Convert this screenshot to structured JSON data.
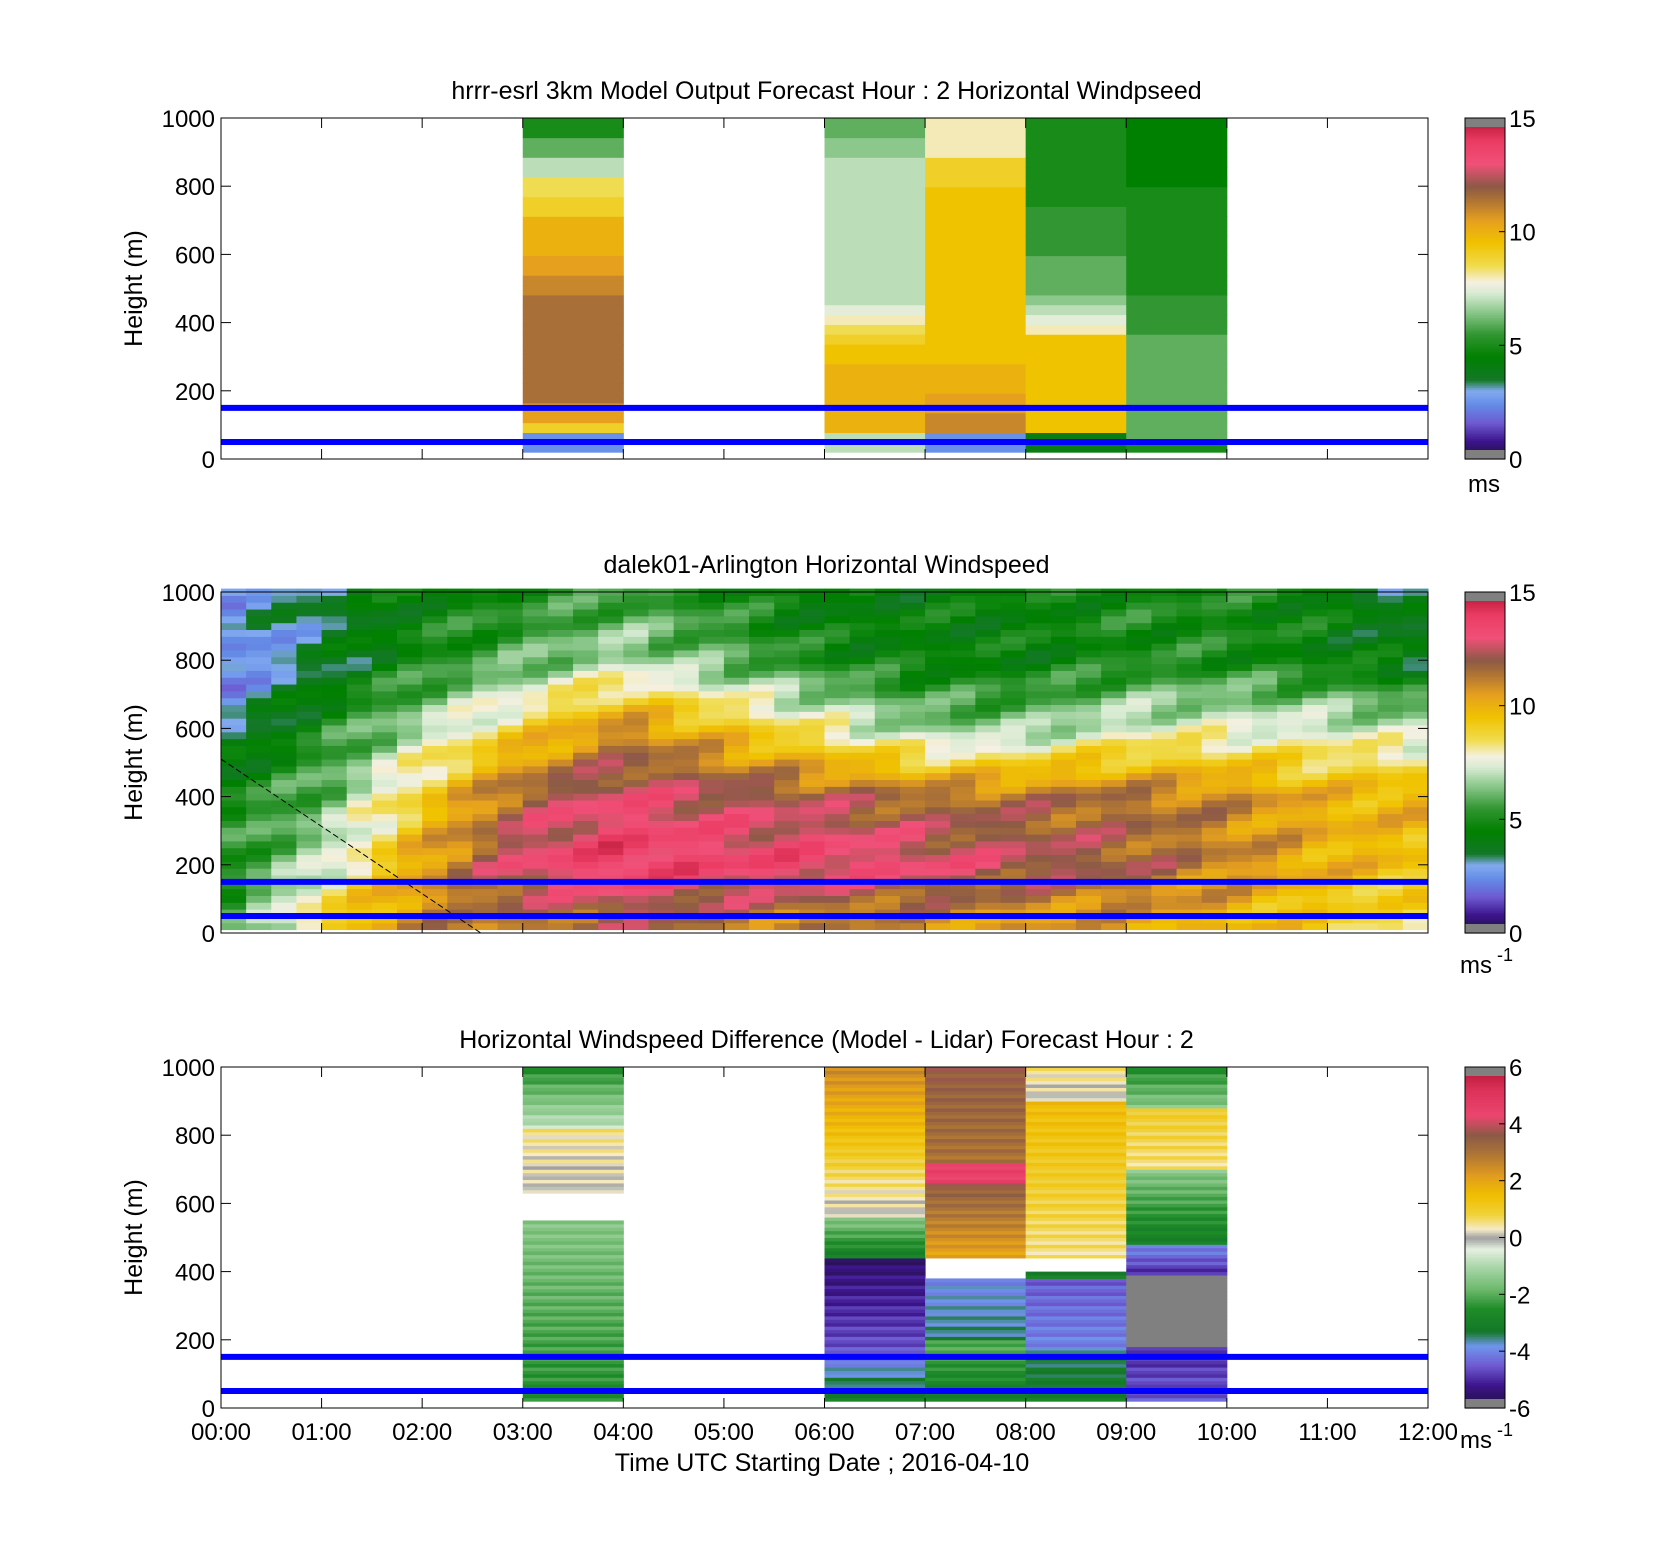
{
  "chart_data": [
    {
      "type": "heatmap",
      "title": "hrrr-esrl 3km Model Output   Forecast Hour : 2 Horizontal Windpseed",
      "ylabel": "Height (m)",
      "xlabel": "",
      "ylim": [
        0,
        1000
      ],
      "yticks": [
        "0",
        "200",
        "400",
        "600",
        "800",
        "1000"
      ],
      "xlim": [
        "00:00",
        "12:00"
      ],
      "x_tick_labels_shown": false,
      "colorbar": {
        "range": [
          0,
          15
        ],
        "ticks": [
          "0",
          "5",
          "10",
          "15"
        ],
        "unit": "ms",
        "unit_exp": "",
        "scale": "speed"
      },
      "reference_lines_m": [
        50,
        150
      ],
      "data_top_m": 1000,
      "x_bins": [
        "03:00",
        "06:00",
        "07:00",
        "08:00",
        "09:00"
      ],
      "columns": [
        {
          "start": "03:00",
          "end": "04:00",
          "bottom_m": 20,
          "top_m": 1000,
          "values": [
            2.5,
            2.5,
            9,
            10.5,
            10.5,
            11.5,
            11.5,
            11.5,
            11.5,
            11.5,
            11.5,
            11.5,
            11.5,
            11.5,
            11.5,
            11.5,
            11,
            11,
            10.5,
            10.5,
            10,
            10,
            10,
            10,
            9,
            9,
            8.5,
            8.5,
            7,
            7,
            6,
            6,
            5,
            5
          ]
        },
        {
          "start": "06:00",
          "end": "07:00",
          "bottom_m": 20,
          "top_m": 1000,
          "values": [
            7,
            7,
            10,
            10,
            10,
            10,
            10,
            10,
            10,
            9.5,
            9.5,
            9,
            8.5,
            8,
            7.5,
            7,
            7,
            7,
            7,
            7,
            7,
            7,
            7,
            7,
            7,
            7,
            7,
            7,
            7,
            7,
            6.5,
            6.5,
            6,
            6
          ]
        },
        {
          "start": "07:00",
          "end": "08:00",
          "bottom_m": 20,
          "top_m": 1000,
          "values": [
            2.5,
            2.5,
            11,
            11,
            10.5,
            10.5,
            10,
            10,
            10,
            9.5,
            9.5,
            9.5,
            9.5,
            9.5,
            9.5,
            9.5,
            9.5,
            9.5,
            9.5,
            9.5,
            9.5,
            9.5,
            9.5,
            9.5,
            9.5,
            9.5,
            9.5,
            9,
            9,
            9,
            8,
            8,
            8,
            8
          ]
        },
        {
          "start": "08:00",
          "end": "09:00",
          "bottom_m": 20,
          "top_m": 1000,
          "values": [
            4,
            4,
            9.5,
            9.5,
            9.5,
            9.5,
            9.5,
            9.5,
            9.5,
            9.5,
            9.5,
            9.5,
            8,
            7.5,
            7,
            6.5,
            6,
            6,
            6,
            6,
            5.5,
            5.5,
            5.5,
            5.5,
            5.5,
            5,
            5,
            5,
            5,
            5,
            5,
            5,
            5,
            5
          ]
        },
        {
          "start": "09:00",
          "end": "10:00",
          "bottom_m": 20,
          "top_m": 1000,
          "values": [
            5,
            6,
            6,
            6,
            6,
            6,
            6,
            6,
            6,
            6,
            6,
            6,
            5.5,
            5.5,
            5.5,
            5.5,
            5,
            5,
            5,
            5,
            5,
            5,
            5,
            5,
            5,
            5,
            5,
            4.5,
            4.5,
            4.5,
            4.5,
            4.5,
            4.5,
            4.5
          ]
        }
      ]
    },
    {
      "type": "heatmap",
      "title": "dalek01-Arlington  Horizontal Windspeed",
      "ylabel": "Height (m)",
      "xlabel": "",
      "ylim": [
        0,
        1000
      ],
      "yticks": [
        "0",
        "200",
        "400",
        "600",
        "800",
        "1000"
      ],
      "xlim": [
        "00:00",
        "12:00"
      ],
      "x_tick_labels_shown": false,
      "colorbar": {
        "range": [
          0,
          15
        ],
        "ticks": [
          "0",
          "5",
          "10",
          "15"
        ],
        "unit": "ms",
        "unit_exp": "-1",
        "scale": "speed"
      },
      "reference_lines_m": [
        50,
        150
      ],
      "data_top_m": 1000,
      "x_extent": [
        "00:00",
        "11:50"
      ],
      "time_step_min": 15,
      "height_step_m": 20,
      "sampled_profiles_ms": [
        {
          "time": "00:00",
          "heights_m": [
            40,
            200,
            400,
            600,
            800,
            1000
          ],
          "values": [
            5,
            5,
            5,
            3,
            2,
            3
          ]
        },
        {
          "time": "01:00",
          "heights_m": [
            40,
            200,
            400,
            600,
            800,
            1000
          ],
          "values": [
            9,
            7,
            6,
            5,
            3.5,
            3.5
          ]
        },
        {
          "time": "02:00",
          "heights_m": [
            40,
            200,
            400,
            600,
            800,
            1000
          ],
          "values": [
            11,
            10.5,
            9,
            7,
            5,
            4.5
          ]
        },
        {
          "time": "03:00",
          "heights_m": [
            40,
            200,
            400,
            600,
            800,
            1000
          ],
          "values": [
            11.5,
            13,
            12,
            9,
            6,
            5
          ]
        },
        {
          "time": "04:00",
          "heights_m": [
            40,
            200,
            400,
            600,
            800,
            1000
          ],
          "values": [
            12,
            14,
            13,
            11,
            7,
            5.5
          ]
        },
        {
          "time": "05:00",
          "heights_m": [
            40,
            200,
            400,
            600,
            800,
            1000
          ],
          "values": [
            11.5,
            13.5,
            12.5,
            9.5,
            6,
            5
          ]
        },
        {
          "time": "06:00",
          "heights_m": [
            40,
            200,
            400,
            600,
            800,
            1000
          ],
          "values": [
            11,
            13.5,
            12,
            8,
            5,
            4
          ]
        },
        {
          "time": "07:00",
          "heights_m": [
            40,
            200,
            400,
            600,
            800,
            1000
          ],
          "values": [
            11,
            13,
            11.5,
            6.5,
            4.5,
            4.5
          ]
        },
        {
          "time": "08:00",
          "heights_m": [
            40,
            200,
            400,
            600,
            800,
            1000
          ],
          "values": [
            10.5,
            12.5,
            11.5,
            6.5,
            4.5,
            4.5
          ]
        },
        {
          "time": "09:00",
          "heights_m": [
            40,
            200,
            400,
            600,
            800,
            1000
          ],
          "values": [
            10.5,
            12,
            11.5,
            7.5,
            5,
            5
          ]
        },
        {
          "time": "10:00",
          "heights_m": [
            40,
            200,
            400,
            600,
            800,
            1000
          ],
          "values": [
            10,
            11,
            11,
            7.5,
            5,
            5
          ]
        },
        {
          "time": "11:00",
          "heights_m": [
            40,
            200,
            400,
            600,
            800,
            1000
          ],
          "values": [
            9,
            10,
            10,
            7.5,
            4.5,
            4.5
          ]
        },
        {
          "time": "11:50",
          "heights_m": [
            40,
            200,
            400,
            600,
            800,
            1000
          ],
          "values": [
            8.5,
            9.5,
            10,
            7,
            4,
            3.5
          ]
        }
      ],
      "dashed_line": {
        "from": {
          "time": "00:00",
          "height_m": 510
        },
        "to": {
          "time": "02:35",
          "height_m": 0
        }
      }
    },
    {
      "type": "heatmap",
      "title": "Horizontal Windspeed Difference (Model - Lidar) Forecast Hour : 2",
      "ylabel": "Height (m)",
      "xlabel": "Time UTC  Starting Date ; 2016-04-10",
      "ylim": [
        0,
        1000
      ],
      "yticks": [
        "0",
        "200",
        "400",
        "600",
        "800",
        "1000"
      ],
      "xlim": [
        "00:00",
        "12:00"
      ],
      "xticks": [
        "00:00",
        "01:00",
        "02:00",
        "03:00",
        "04:00",
        "05:00",
        "06:00",
        "07:00",
        "08:00",
        "09:00",
        "10:00",
        "11:00",
        "12:00"
      ],
      "colorbar": {
        "range": [
          -6,
          6
        ],
        "ticks": [
          "-6",
          "-4",
          "-2",
          "0",
          "2",
          "4",
          "6"
        ],
        "unit": "ms",
        "unit_exp": "-1",
        "scale": "diff"
      },
      "reference_lines_m": [
        50,
        150
      ],
      "columns": [
        {
          "start": "03:00",
          "end": "04:00",
          "segments": [
            {
              "bottom_m": 20,
              "top_m": 550,
              "from": -2.5,
              "to": -1.5
            },
            {
              "bottom_m": 630,
              "top_m": 820,
              "from": 0,
              "to": 0.5
            },
            {
              "bottom_m": 820,
              "top_m": 1000,
              "from": -0.8,
              "to": -2.5
            }
          ]
        },
        {
          "start": "06:00",
          "end": "07:00",
          "segments": [
            {
              "bottom_m": 20,
              "top_m": 140,
              "from": -3,
              "to": -4
            },
            {
              "bottom_m": 140,
              "top_m": 440,
              "from": -4.5,
              "to": -5.5
            },
            {
              "bottom_m": 440,
              "top_m": 560,
              "from": -3,
              "to": -1.5
            },
            {
              "bottom_m": 560,
              "top_m": 1000,
              "from": 0,
              "to": 2.5
            }
          ]
        },
        {
          "start": "07:00",
          "end": "08:00",
          "segments": [
            {
              "bottom_m": 20,
              "top_m": 200,
              "from": -3,
              "to": -2
            },
            {
              "bottom_m": 200,
              "top_m": 380,
              "from": -3.5,
              "to": -4
            },
            {
              "bottom_m": 440,
              "top_m": 660,
              "from": 2,
              "to": 3.5
            },
            {
              "bottom_m": 660,
              "top_m": 720,
              "from": 4.5,
              "to": 4.5
            },
            {
              "bottom_m": 720,
              "top_m": 1000,
              "from": 3,
              "to": 3.5
            }
          ]
        },
        {
          "start": "08:00",
          "end": "09:00",
          "segments": [
            {
              "bottom_m": 20,
              "top_m": 170,
              "from": -3,
              "to": -3.5
            },
            {
              "bottom_m": 170,
              "top_m": 380,
              "from": -4,
              "to": -4.5
            },
            {
              "bottom_m": 380,
              "top_m": 400,
              "from": -3,
              "to": -3
            },
            {
              "bottom_m": 440,
              "top_m": 900,
              "from": 0.5,
              "to": 1.5
            },
            {
              "bottom_m": 900,
              "top_m": 1000,
              "from": 0,
              "to": 0.5
            }
          ]
        },
        {
          "start": "09:00",
          "end": "10:00",
          "segments": [
            {
              "bottom_m": 20,
              "top_m": 180,
              "from": -4.5,
              "to": -5
            },
            {
              "bottom_m": 180,
              "top_m": 390,
              "from": -6.5,
              "to": -6.5
            },
            {
              "bottom_m": 390,
              "top_m": 480,
              "from": -5,
              "to": -4
            },
            {
              "bottom_m": 480,
              "top_m": 700,
              "from": -3,
              "to": -1.5
            },
            {
              "bottom_m": 700,
              "top_m": 880,
              "from": 0.5,
              "to": 1
            },
            {
              "bottom_m": 880,
              "top_m": 1000,
              "from": -1.5,
              "to": -2.5
            }
          ]
        }
      ]
    }
  ]
}
